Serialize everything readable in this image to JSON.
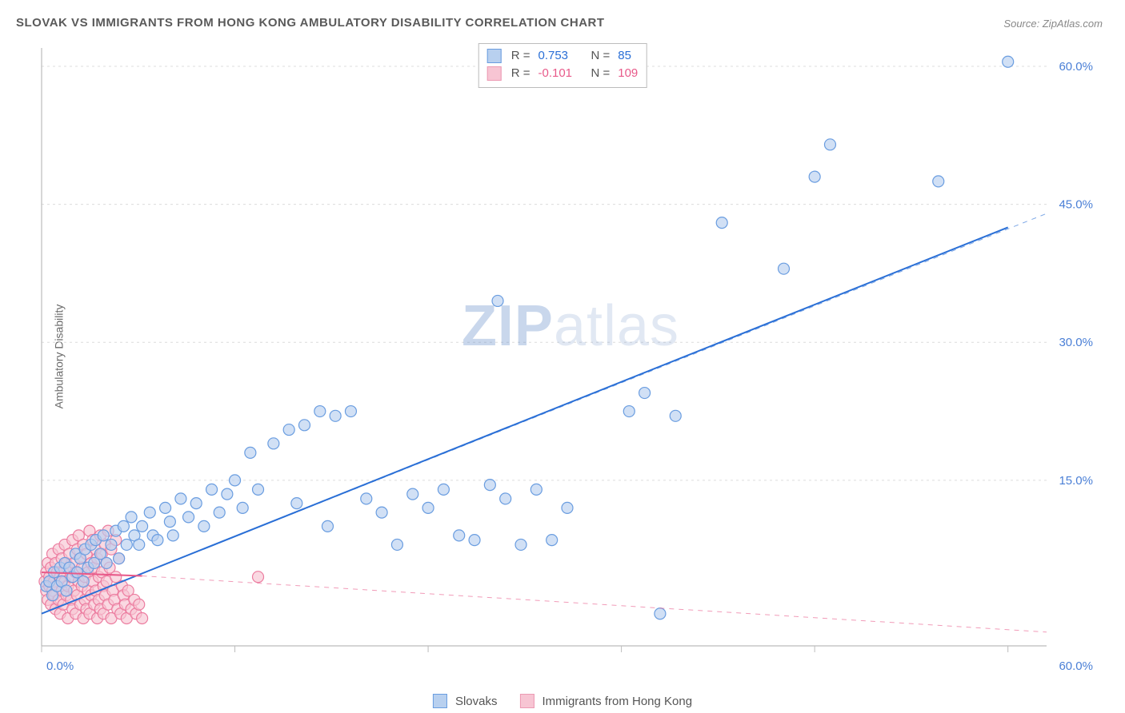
{
  "title": "SLOVAK VS IMMIGRANTS FROM HONG KONG AMBULATORY DISABILITY CORRELATION CHART",
  "source_label": "Source:",
  "source_name": "ZipAtlas.com",
  "ylabel": "Ambulatory Disability",
  "watermark_a": "ZIP",
  "watermark_b": "atlas",
  "chart": {
    "type": "scatter",
    "xlim": [
      0,
      65
    ],
    "ylim": [
      -3,
      62
    ],
    "grid_color": "#dcdcdc",
    "axis_color": "#bcbcbc",
    "tick_color": "#bcbcbc",
    "background_color": "#ffffff",
    "y_ticks": [
      15.0,
      30.0,
      45.0,
      60.0
    ],
    "y_tick_labels": [
      "15.0%",
      "30.0%",
      "45.0%",
      "60.0%"
    ],
    "x_ticks_minor": [
      0,
      12.5,
      25,
      37.5,
      50,
      62.5
    ],
    "x_corner_left": "0.0%",
    "x_corner_right": "60.0%",
    "marker_radius": 7,
    "marker_stroke_width": 1.2,
    "line_width": 2,
    "dash_pattern": "6 6",
    "series": [
      {
        "name": "Slovaks",
        "fill": "#b8d0ef",
        "stroke": "#6a9de0",
        "line_color": "#2a6fd6",
        "R": "0.753",
        "N": "85",
        "trend": {
          "x1": 0,
          "y1": 0.5,
          "x2": 62.5,
          "y2": 42.5
        },
        "trend_dash": {
          "x1": 0,
          "y1": 0.5,
          "x2": 65,
          "y2": 44
        },
        "points": [
          [
            0.3,
            3.5
          ],
          [
            0.5,
            4.0
          ],
          [
            0.7,
            2.5
          ],
          [
            0.8,
            5.0
          ],
          [
            1.0,
            3.5
          ],
          [
            1.2,
            5.5
          ],
          [
            1.3,
            4.0
          ],
          [
            1.5,
            6.0
          ],
          [
            1.6,
            3.0
          ],
          [
            1.8,
            5.5
          ],
          [
            2.0,
            4.5
          ],
          [
            2.2,
            7.0
          ],
          [
            2.3,
            5.0
          ],
          [
            2.5,
            6.5
          ],
          [
            2.7,
            4.0
          ],
          [
            2.8,
            7.5
          ],
          [
            3.0,
            5.5
          ],
          [
            3.2,
            8.0
          ],
          [
            3.4,
            6.0
          ],
          [
            3.5,
            8.5
          ],
          [
            3.8,
            7.0
          ],
          [
            4.0,
            9.0
          ],
          [
            4.2,
            6.0
          ],
          [
            4.5,
            8.0
          ],
          [
            4.8,
            9.5
          ],
          [
            5.0,
            6.5
          ],
          [
            5.3,
            10.0
          ],
          [
            5.5,
            8.0
          ],
          [
            5.8,
            11.0
          ],
          [
            6.0,
            9.0
          ],
          [
            6.3,
            8.0
          ],
          [
            6.5,
            10.0
          ],
          [
            7.0,
            11.5
          ],
          [
            7.2,
            9.0
          ],
          [
            7.5,
            8.5
          ],
          [
            8.0,
            12.0
          ],
          [
            8.3,
            10.5
          ],
          [
            8.5,
            9.0
          ],
          [
            9.0,
            13.0
          ],
          [
            9.5,
            11.0
          ],
          [
            10.0,
            12.5
          ],
          [
            10.5,
            10.0
          ],
          [
            11.0,
            14.0
          ],
          [
            11.5,
            11.5
          ],
          [
            12.0,
            13.5
          ],
          [
            12.5,
            15.0
          ],
          [
            13.0,
            12.0
          ],
          [
            13.5,
            18.0
          ],
          [
            14.0,
            14.0
          ],
          [
            15.0,
            19.0
          ],
          [
            16.0,
            20.5
          ],
          [
            16.5,
            12.5
          ],
          [
            17.0,
            21.0
          ],
          [
            18.0,
            22.5
          ],
          [
            18.5,
            10.0
          ],
          [
            19.0,
            22.0
          ],
          [
            20.0,
            22.5
          ],
          [
            21.0,
            13.0
          ],
          [
            22.0,
            11.5
          ],
          [
            23.0,
            8.0
          ],
          [
            24.0,
            13.5
          ],
          [
            25.0,
            12.0
          ],
          [
            26.0,
            14.0
          ],
          [
            27.0,
            9.0
          ],
          [
            28.0,
            8.5
          ],
          [
            29.0,
            14.5
          ],
          [
            29.5,
            34.5
          ],
          [
            30.0,
            13.0
          ],
          [
            31.0,
            8.0
          ],
          [
            32.0,
            14.0
          ],
          [
            33.0,
            8.5
          ],
          [
            34.0,
            12.0
          ],
          [
            38.0,
            22.5
          ],
          [
            39.0,
            24.5
          ],
          [
            40.0,
            0.5
          ],
          [
            41.0,
            22.0
          ],
          [
            44.0,
            43.0
          ],
          [
            48.0,
            38.0
          ],
          [
            50.0,
            48.0
          ],
          [
            51.0,
            51.5
          ],
          [
            58.0,
            47.5
          ],
          [
            62.5,
            60.5
          ]
        ]
      },
      {
        "name": "Immigrants from Hong Kong",
        "fill": "#f7c5d3",
        "stroke": "#ec7da0",
        "line_color": "#e85a8a",
        "R": "-0.101",
        "N": "109",
        "trend": {
          "x1": 0,
          "y1": 5.0,
          "x2": 6.5,
          "y2": 4.6
        },
        "trend_dash": {
          "x1": 6.5,
          "y1": 4.6,
          "x2": 65,
          "y2": -1.5
        },
        "points": [
          [
            0.2,
            4.0
          ],
          [
            0.3,
            3.0
          ],
          [
            0.3,
            5.0
          ],
          [
            0.4,
            2.0
          ],
          [
            0.4,
            6.0
          ],
          [
            0.5,
            3.5
          ],
          [
            0.5,
            4.5
          ],
          [
            0.6,
            1.5
          ],
          [
            0.6,
            5.5
          ],
          [
            0.7,
            3.0
          ],
          [
            0.7,
            7.0
          ],
          [
            0.8,
            2.5
          ],
          [
            0.8,
            4.0
          ],
          [
            0.9,
            6.0
          ],
          [
            0.9,
            1.0
          ],
          [
            1.0,
            5.0
          ],
          [
            1.0,
            3.5
          ],
          [
            1.1,
            2.0
          ],
          [
            1.1,
            7.5
          ],
          [
            1.2,
            4.5
          ],
          [
            1.2,
            0.5
          ],
          [
            1.3,
            6.5
          ],
          [
            1.3,
            3.0
          ],
          [
            1.4,
            5.0
          ],
          [
            1.4,
            1.5
          ],
          [
            1.5,
            8.0
          ],
          [
            1.5,
            4.0
          ],
          [
            1.6,
            2.5
          ],
          [
            1.6,
            6.0
          ],
          [
            1.7,
            3.5
          ],
          [
            1.7,
            0.0
          ],
          [
            1.8,
            5.5
          ],
          [
            1.8,
            7.0
          ],
          [
            1.9,
            2.0
          ],
          [
            1.9,
            4.5
          ],
          [
            2.0,
            8.5
          ],
          [
            2.0,
            1.0
          ],
          [
            2.1,
            6.0
          ],
          [
            2.1,
            3.0
          ],
          [
            2.2,
            5.0
          ],
          [
            2.2,
            0.5
          ],
          [
            2.3,
            7.5
          ],
          [
            2.3,
            2.5
          ],
          [
            2.4,
            4.0
          ],
          [
            2.4,
            9.0
          ],
          [
            2.5,
            1.5
          ],
          [
            2.5,
            6.5
          ],
          [
            2.6,
            3.5
          ],
          [
            2.6,
            5.5
          ],
          [
            2.7,
            0.0
          ],
          [
            2.7,
            8.0
          ],
          [
            2.8,
            2.0
          ],
          [
            2.8,
            4.5
          ],
          [
            2.9,
            7.0
          ],
          [
            2.9,
            1.0
          ],
          [
            3.0,
            5.0
          ],
          [
            3.0,
            3.0
          ],
          [
            3.1,
            9.5
          ],
          [
            3.1,
            0.5
          ],
          [
            3.2,
            6.0
          ],
          [
            3.2,
            2.5
          ],
          [
            3.3,
            4.0
          ],
          [
            3.3,
            8.5
          ],
          [
            3.4,
            1.5
          ],
          [
            3.4,
            5.5
          ],
          [
            3.5,
            7.5
          ],
          [
            3.5,
            3.0
          ],
          [
            3.6,
            0.0
          ],
          [
            3.6,
            6.5
          ],
          [
            3.7,
            2.0
          ],
          [
            3.7,
            4.5
          ],
          [
            3.8,
            9.0
          ],
          [
            3.8,
            1.0
          ],
          [
            3.9,
            5.0
          ],
          [
            3.9,
            7.0
          ],
          [
            4.0,
            3.5
          ],
          [
            4.0,
            0.5
          ],
          [
            4.1,
            8.0
          ],
          [
            4.1,
            2.5
          ],
          [
            4.2,
            6.0
          ],
          [
            4.2,
            4.0
          ],
          [
            4.3,
            1.5
          ],
          [
            4.3,
            9.5
          ],
          [
            4.4,
            5.5
          ],
          [
            4.5,
            0.0
          ],
          [
            4.5,
            7.5
          ],
          [
            4.6,
            3.0
          ],
          [
            4.7,
            2.0
          ],
          [
            4.8,
            8.5
          ],
          [
            4.8,
            4.5
          ],
          [
            4.9,
            1.0
          ],
          [
            5.0,
            6.5
          ],
          [
            5.1,
            0.5
          ],
          [
            5.2,
            3.5
          ],
          [
            5.3,
            2.5
          ],
          [
            5.4,
            1.5
          ],
          [
            5.5,
            0.0
          ],
          [
            5.6,
            3.0
          ],
          [
            5.8,
            1.0
          ],
          [
            6.0,
            2.0
          ],
          [
            6.1,
            0.5
          ],
          [
            6.3,
            1.5
          ],
          [
            6.5,
            0.0
          ],
          [
            14.0,
            4.5
          ]
        ]
      }
    ]
  },
  "legend": {
    "series1": "Slovaks",
    "series2": "Immigrants from Hong Kong"
  },
  "correl_box": {
    "R_label": "R =",
    "N_label": "N ="
  }
}
